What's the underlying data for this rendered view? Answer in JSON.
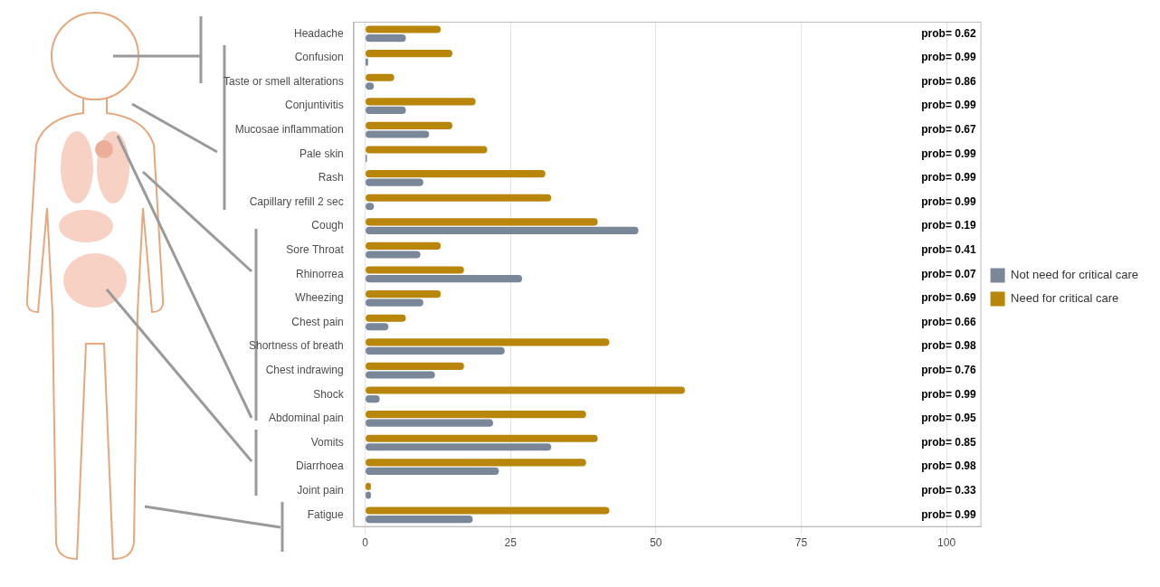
{
  "chart_data": {
    "type": "bar",
    "orientation": "horizontal",
    "categories": [
      "Headache",
      "Confusion",
      "Taste or smell alterations",
      "Conjuntivitis",
      "Mucosae inflammation",
      "Pale skin",
      "Rash",
      "Capillary refill 2 sec",
      "Cough",
      "Sore Throat",
      "Rhinorrea",
      "Wheezing",
      "Chest pain",
      "Shortness of breath",
      "Chest indrawing",
      "Shock",
      "Abdominal pain",
      "Vomits",
      "Diarrhoea",
      "Joint pain",
      "Fatigue"
    ],
    "series": [
      {
        "name": "Need for critical care",
        "color": "#b8860b",
        "values": [
          13,
          15,
          5,
          19,
          15,
          21,
          31,
          32,
          40,
          13,
          17,
          13,
          7,
          42,
          17,
          55,
          38,
          40,
          38,
          1,
          42
        ]
      },
      {
        "name": "Not need for critical care",
        "color": "#7a8799",
        "values": [
          7,
          0.5,
          1.5,
          7,
          11,
          0.3,
          10,
          1.5,
          47,
          9.5,
          27,
          10,
          4,
          24,
          12,
          2.5,
          22,
          32,
          23,
          1,
          18.5
        ]
      }
    ],
    "annotations": [
      "prob= 0.62",
      "prob= 0.99",
      "prob= 0.86",
      "prob= 0.99",
      "prob= 0.67",
      "prob= 0.99",
      "prob= 0.99",
      "prob= 0.99",
      "prob= 0.19",
      "prob= 0.41",
      "prob= 0.07",
      "prob= 0.69",
      "prob= 0.66",
      "prob= 0.98",
      "prob= 0.76",
      "prob= 0.99",
      "prob= 0.95",
      "prob= 0.85",
      "prob= 0.98",
      "prob= 0.33",
      "prob= 0.99"
    ],
    "xlim": [
      -2,
      106
    ],
    "xticks": [
      0,
      25,
      50,
      75,
      100
    ],
    "grid": true,
    "legend": "right"
  }
}
